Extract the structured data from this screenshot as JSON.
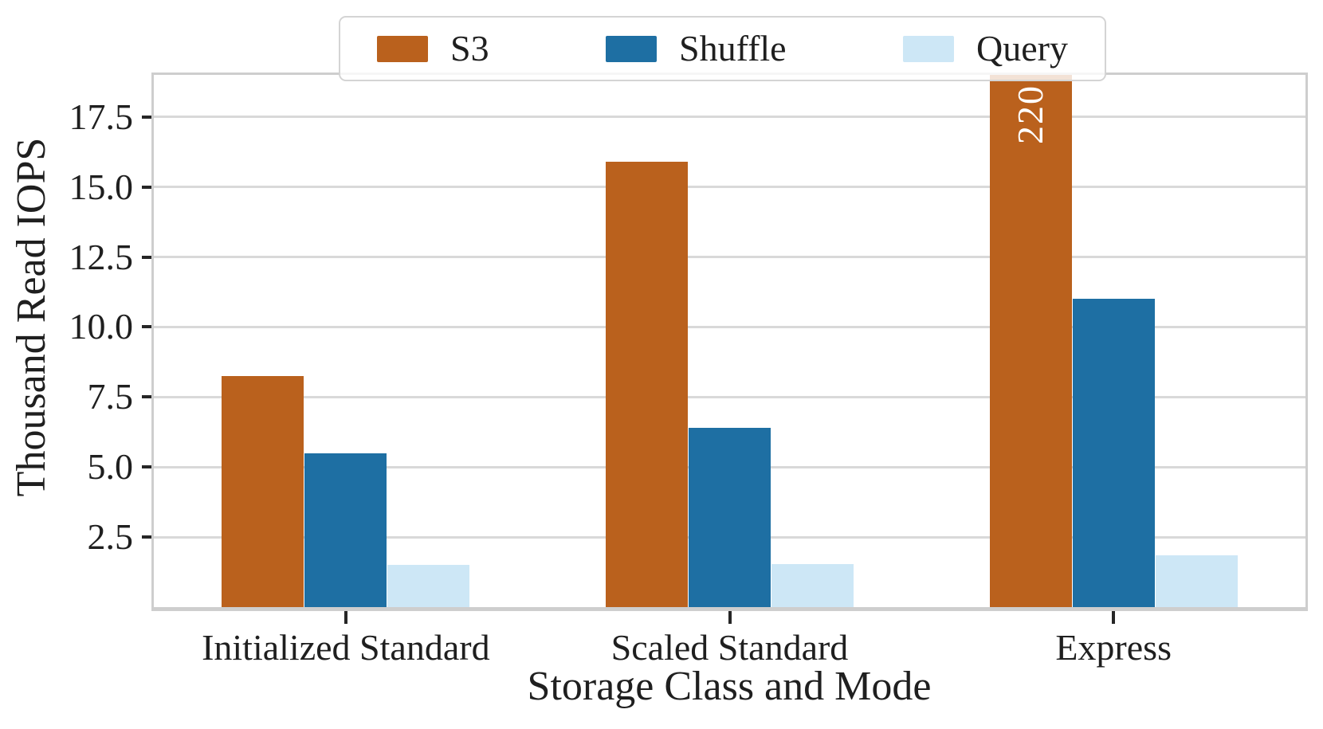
{
  "chart_data": {
    "type": "bar",
    "title": "",
    "xlabel": "Storage Class and Mode",
    "ylabel": "Thousand Read IOPS",
    "categories": [
      "Initialized Standard",
      "Scaled Standard",
      "Express"
    ],
    "series": [
      {
        "name": "S3",
        "color": "#ba611d",
        "values": [
          8.25,
          15.9,
          220
        ]
      },
      {
        "name": "Shuffle",
        "color": "#1e6fa3",
        "values": [
          5.5,
          6.4,
          11.0
        ]
      },
      {
        "name": "Query",
        "color": "#cde7f6",
        "values": [
          1.5,
          1.55,
          1.85
        ]
      }
    ],
    "ylim": [
      0,
      19
    ],
    "yticks": [
      2.5,
      5.0,
      7.5,
      10.0,
      12.5,
      15.0,
      17.5
    ],
    "ytick_labels": [
      "2.5",
      "5.0",
      "7.5",
      "10.0",
      "12.5",
      "15.0",
      "17.5"
    ],
    "grid": "horizontal",
    "legend_position": "top-center",
    "annotations": [
      {
        "series": "S3",
        "category": "Express",
        "text": "220",
        "rotation": 90,
        "color": "#ffffff",
        "note": "bar clipped at top of axes"
      }
    ],
    "colors": {
      "grid": "#d9d9d9",
      "spine": "#cecece",
      "tick": "#262626",
      "text": "#1f1f1f",
      "background": "#ffffff"
    }
  }
}
